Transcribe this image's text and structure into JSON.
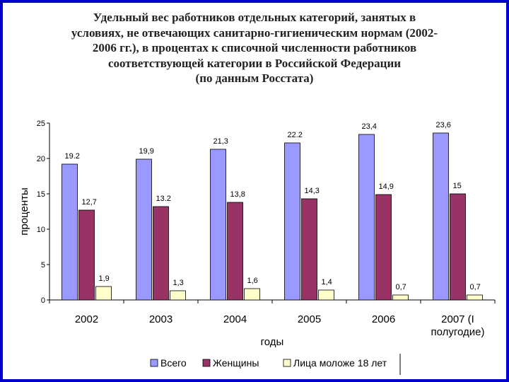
{
  "title_lines": [
    "Удельный вес работников отдельных категорий, занятых в",
    "условиях, не отвечающих санитарно-гигиеническим нормам (2002-",
    "2006 гг.), в процентах к списочной численности работников",
    "соответствующей категории в Российской Федерации",
    "(по данным Росстата)"
  ],
  "colors": {
    "frame": "#0000cc",
    "series": [
      "#9999ff",
      "#993366",
      "#ffffcc"
    ]
  },
  "chart_data": {
    "type": "bar",
    "title": "Удельный вес работников отдельных категорий, занятых в условиях, не отвечающих санитарно-гигиеническим нормам (2002-2006 гг.), в процентах к списочной численности работников соответствующей категории в Российской Федерации (по данным Росстата)",
    "xlabel": "годы",
    "ylabel": "проценты",
    "ylim": [
      0,
      25
    ],
    "yticks": [
      "0",
      "5",
      "10",
      "15",
      "20",
      "25"
    ],
    "grid": false,
    "legend_position": "bottom",
    "categories": [
      [
        "2002"
      ],
      [
        "2003"
      ],
      [
        "2004"
      ],
      [
        "2005"
      ],
      [
        "2006"
      ],
      [
        "2007 (I",
        "полугодие)"
      ]
    ],
    "series": [
      {
        "name": "Всего",
        "values": [
          19.2,
          19.9,
          21.3,
          22.2,
          23.4,
          23.6
        ],
        "labels": [
          "19.2",
          "19,9",
          "21,3",
          "22.2",
          "23,4",
          "23,6"
        ]
      },
      {
        "name": "Женщины",
        "values": [
          12.7,
          13.2,
          13.8,
          14.3,
          14.9,
          15
        ],
        "labels": [
          "12,7",
          "13.2",
          "13,8",
          "14,3",
          "14,9",
          "15"
        ]
      },
      {
        "name": "Лица моложе 18 лет",
        "values": [
          1.9,
          1.3,
          1.6,
          1.4,
          0.7,
          0.7
        ],
        "labels": [
          "1,9",
          "1,3",
          "1,6",
          "1,4",
          "0,7",
          "0,7"
        ]
      }
    ]
  }
}
